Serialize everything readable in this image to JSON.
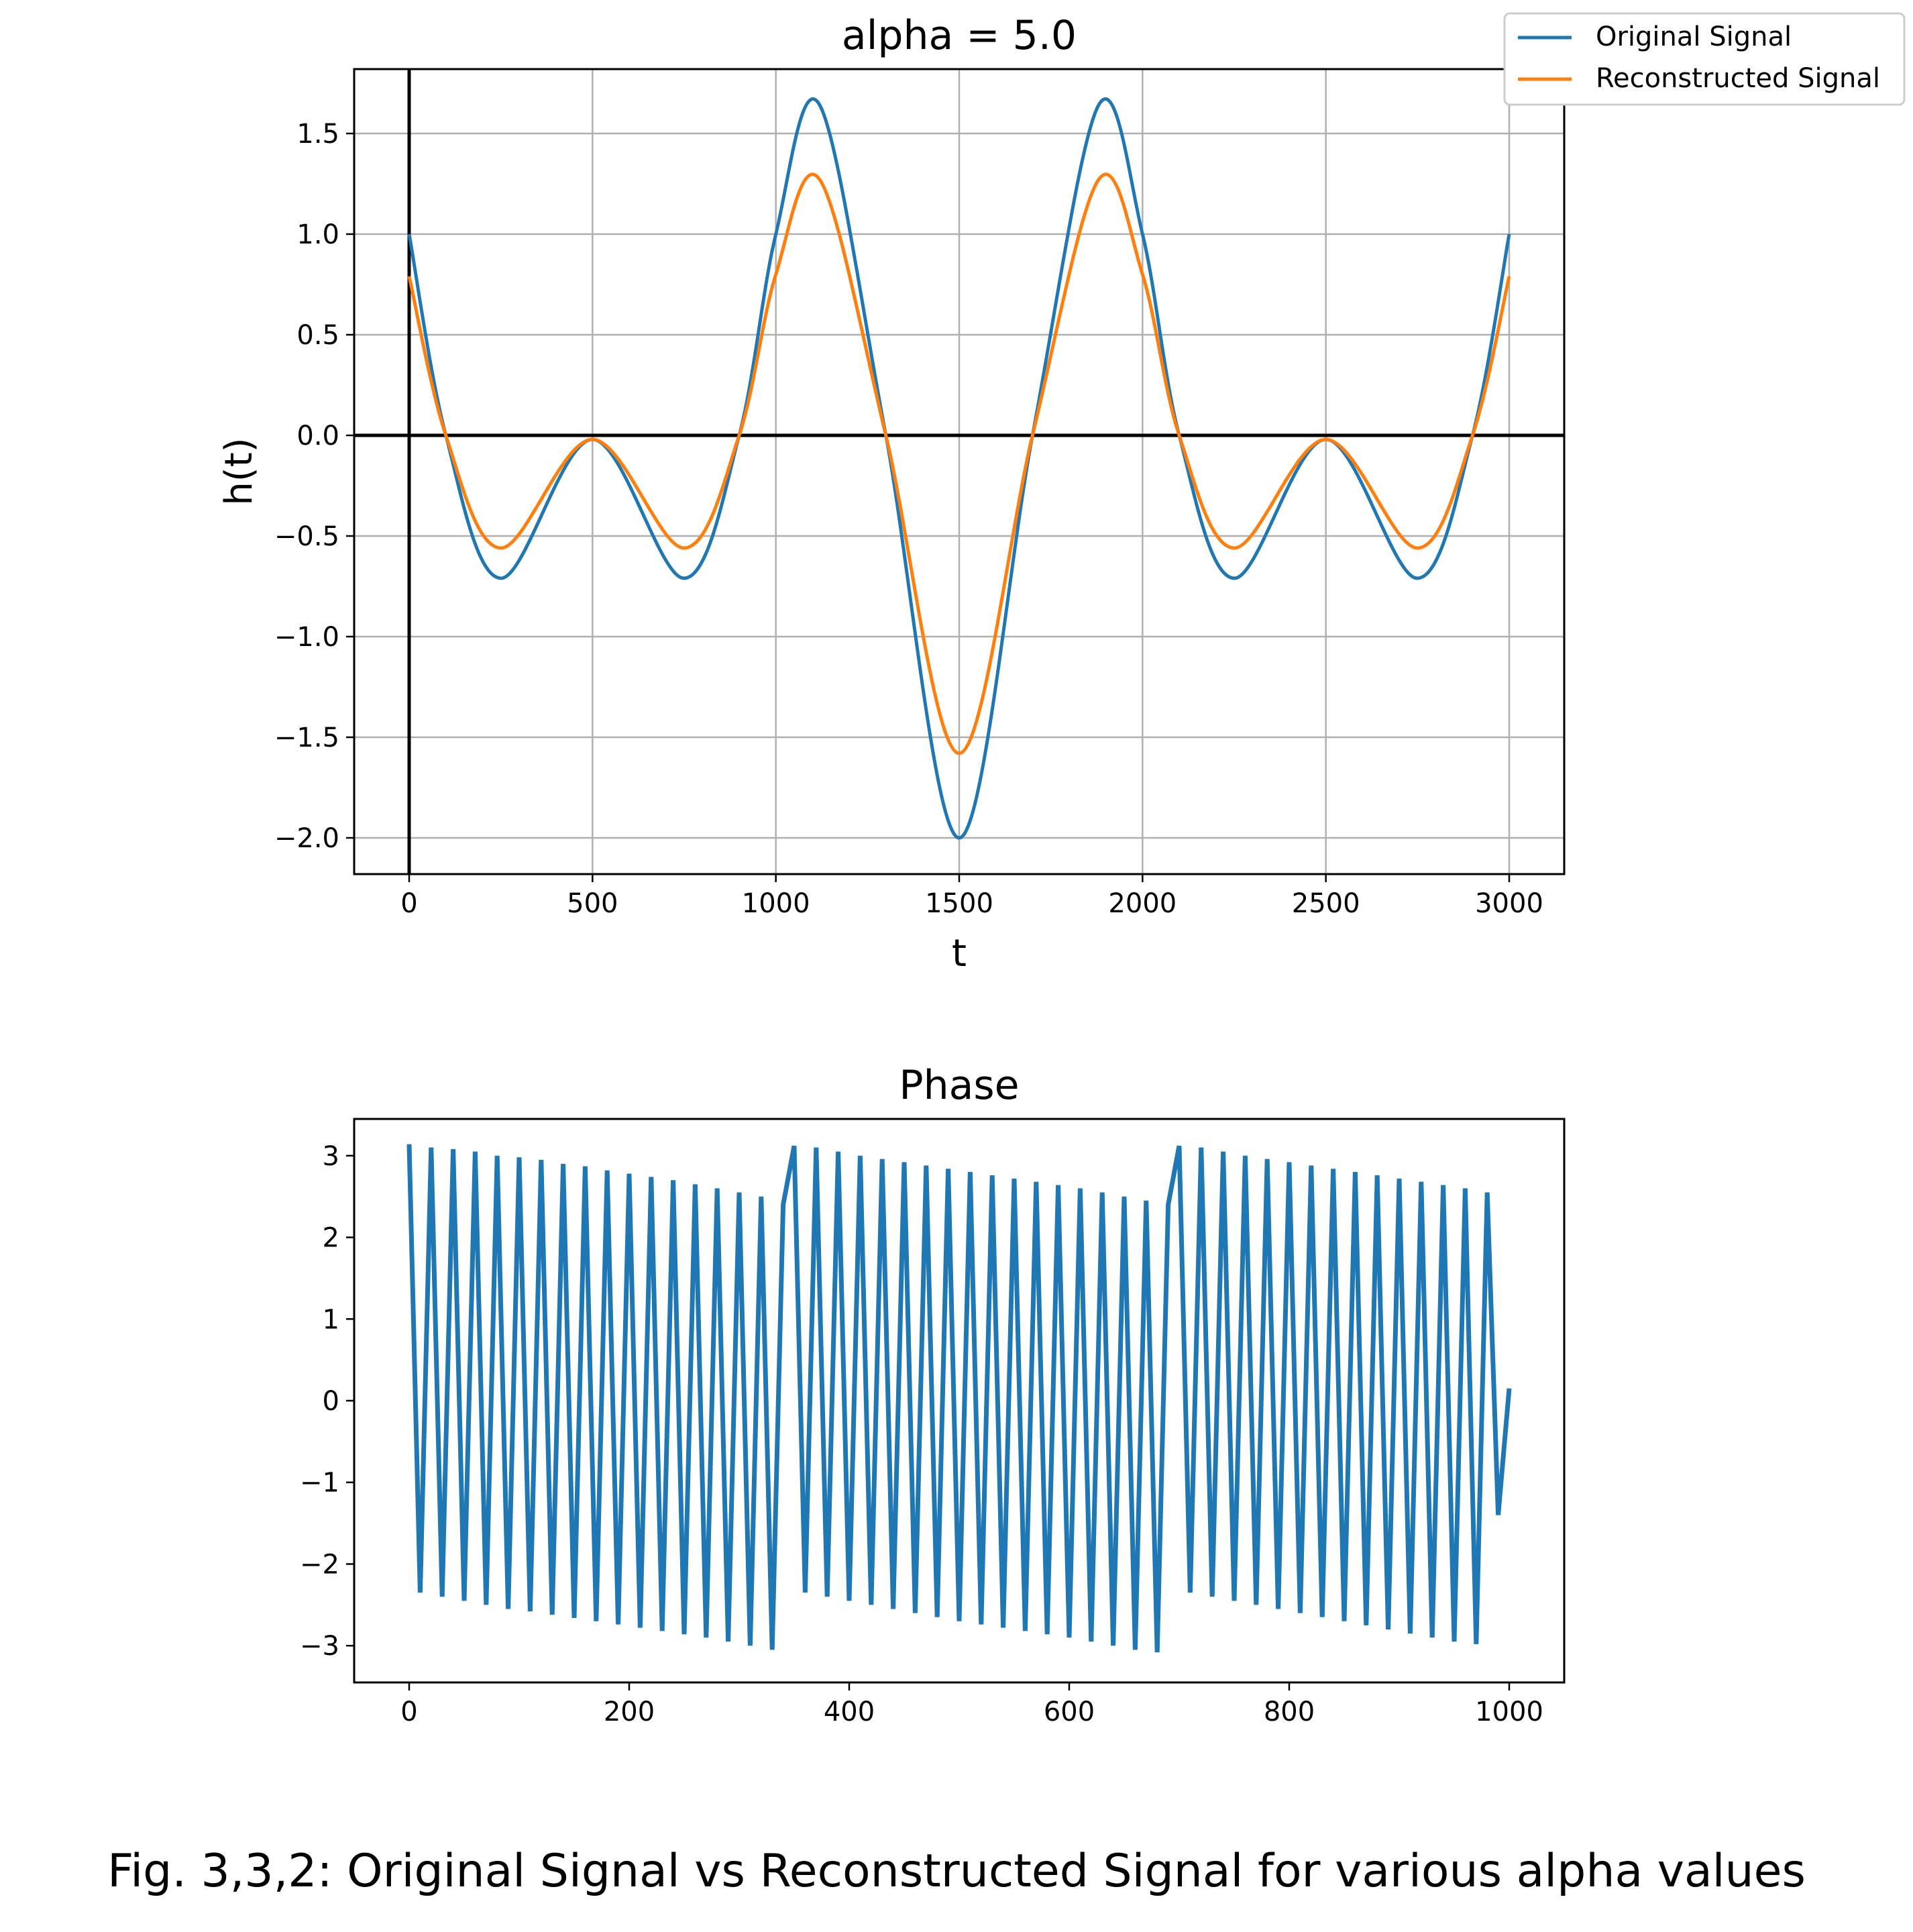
{
  "caption": "Fig. 3,3,2: Original Signal vs Reconstructed Signal for various alpha values",
  "chart_data": [
    {
      "type": "line",
      "title": "alpha = 5.0",
      "xlabel": "t",
      "ylabel": "h(t)",
      "xlim": [
        -150,
        3150
      ],
      "ylim": [
        -2.18,
        1.82
      ],
      "xticks": [
        0,
        500,
        1000,
        1500,
        2000,
        2500,
        3000
      ],
      "xtick_labels": [
        "0",
        "500",
        "1000",
        "1500",
        "2000",
        "2500",
        "3000"
      ],
      "yticks": [
        -2.0,
        -1.5,
        -1.0,
        -0.5,
        0.0,
        0.5,
        1.0,
        1.5
      ],
      "ytick_labels": [
        "−2.0",
        "−1.5",
        "−1.0",
        "−0.5",
        "0.0",
        "0.5",
        "1.0",
        "1.5"
      ],
      "grid": true,
      "legend_position": "top-right",
      "reference_lines": [
        "x = 0",
        "y = 0"
      ],
      "colors": {
        "original": "#1f77b4",
        "reconstructed": "#ff7f0e",
        "grid": "#b0b0b0"
      },
      "x": [
        0,
        100,
        250,
        500,
        750,
        900,
        1000,
        1120,
        1300,
        1500,
        1700,
        1880,
        2000,
        2100,
        2250,
        2500,
        2750,
        2900,
        3000
      ],
      "series": [
        {
          "name": "Original Signal",
          "values": [
            1.0,
            0.0,
            -0.71,
            -0.02,
            -0.71,
            0.0,
            1.0,
            1.64,
            0.0,
            -2.0,
            0.0,
            1.64,
            1.0,
            0.0,
            -0.71,
            -0.02,
            -0.71,
            0.0,
            1.0
          ]
        },
        {
          "name": "Reconstructed Signal",
          "values": [
            0.79,
            0.0,
            -0.56,
            -0.02,
            -0.56,
            0.0,
            0.8,
            1.27,
            0.0,
            -1.58,
            0.0,
            1.27,
            0.8,
            0.0,
            -0.56,
            -0.02,
            -0.56,
            0.0,
            0.79
          ]
        }
      ]
    },
    {
      "type": "line",
      "title": "Phase",
      "xlabel": "",
      "ylabel": "",
      "xlim": [
        -50,
        1050
      ],
      "ylim": [
        -3.45,
        3.45
      ],
      "xticks": [
        0,
        200,
        400,
        600,
        800,
        1000
      ],
      "xtick_labels": [
        "0",
        "200",
        "400",
        "600",
        "800",
        "1000"
      ],
      "yticks": [
        -3,
        -2,
        -1,
        0,
        1,
        2,
        3
      ],
      "ytick_labels": [
        "−3",
        "−2",
        "−1",
        "0",
        "1",
        "2",
        "3"
      ],
      "grid": false,
      "colors": {
        "line": "#1f77b4"
      },
      "series": [
        {
          "description_free": true,
          "x": [
            0,
            10,
            20,
            30,
            40,
            50,
            60,
            70,
            80,
            90,
            100,
            110,
            120,
            130,
            140,
            150,
            160,
            170,
            180,
            190,
            200,
            210,
            220,
            230,
            240,
            250,
            260,
            270,
            280,
            290,
            300,
            310,
            320,
            330,
            340,
            350,
            360,
            370,
            380,
            390,
            400,
            410,
            420,
            430,
            440,
            450,
            460,
            470,
            480,
            490,
            500,
            510,
            520,
            530,
            540,
            550,
            560,
            570,
            580,
            590,
            600,
            610,
            620,
            630,
            640,
            650,
            660,
            670,
            680,
            690,
            700,
            710,
            720,
            730,
            740,
            750,
            760,
            770,
            780,
            790,
            800,
            810,
            820,
            830,
            840,
            850,
            860,
            870,
            880,
            890,
            900,
            910,
            920,
            930,
            940,
            950,
            960,
            970,
            980,
            990,
            1000
          ],
          "values": [
            3.14,
            -2.35,
            3.1,
            -2.4,
            3.08,
            -2.45,
            3.05,
            -2.5,
            3.0,
            -2.55,
            2.98,
            -2.58,
            2.95,
            -2.62,
            2.9,
            -2.66,
            2.87,
            -2.7,
            2.82,
            -2.74,
            2.78,
            -2.78,
            2.74,
            -2.82,
            2.7,
            -2.86,
            2.65,
            -2.9,
            2.6,
            -2.95,
            2.55,
            -3.0,
            2.5,
            -3.05,
            2.4,
            3.12,
            -2.35,
            3.1,
            -2.4,
            3.05,
            -2.45,
            3.0,
            -2.5,
            2.96,
            -2.55,
            2.92,
            -2.6,
            2.88,
            -2.65,
            2.84,
            -2.7,
            2.8,
            -2.74,
            2.76,
            -2.78,
            2.72,
            -2.82,
            2.68,
            -2.86,
            2.64,
            -2.9,
            2.6,
            -2.95,
            2.55,
            -3.0,
            2.5,
            -3.05,
            2.45,
            -3.08,
            2.4,
            3.12,
            -2.35,
            3.1,
            -2.4,
            3.05,
            -2.45,
            3.0,
            -2.5,
            2.96,
            -2.55,
            2.92,
            -2.6,
            2.88,
            -2.65,
            2.84,
            -2.7,
            2.8,
            -2.75,
            2.76,
            -2.8,
            2.72,
            -2.85,
            2.68,
            -2.9,
            2.64,
            -2.95,
            2.6,
            -2.98,
            2.55,
            -1.4,
            0.15
          ]
        }
      ]
    }
  ]
}
